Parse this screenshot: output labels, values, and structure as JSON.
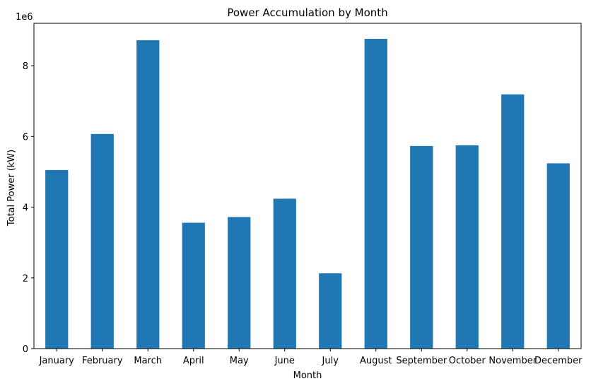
{
  "chart_data": {
    "type": "bar",
    "title": "Power Accumulation by Month",
    "xlabel": "Month",
    "ylabel": "Total Power (kW)",
    "y_offset_label": "1e6",
    "categories": [
      "January",
      "February",
      "March",
      "April",
      "May",
      "June",
      "July",
      "August",
      "September",
      "October",
      "November",
      "December"
    ],
    "values": [
      5050000,
      6070000,
      8720000,
      3560000,
      3720000,
      4240000,
      2130000,
      8760000,
      5730000,
      5750000,
      7190000,
      5240000
    ],
    "ylim": [
      0,
      9200000
    ],
    "yticks": [
      0,
      2000000,
      4000000,
      6000000,
      8000000
    ],
    "ytick_labels": [
      "0",
      "2",
      "4",
      "6",
      "8"
    ],
    "grid": false,
    "bar_color": "#1f77b4"
  }
}
